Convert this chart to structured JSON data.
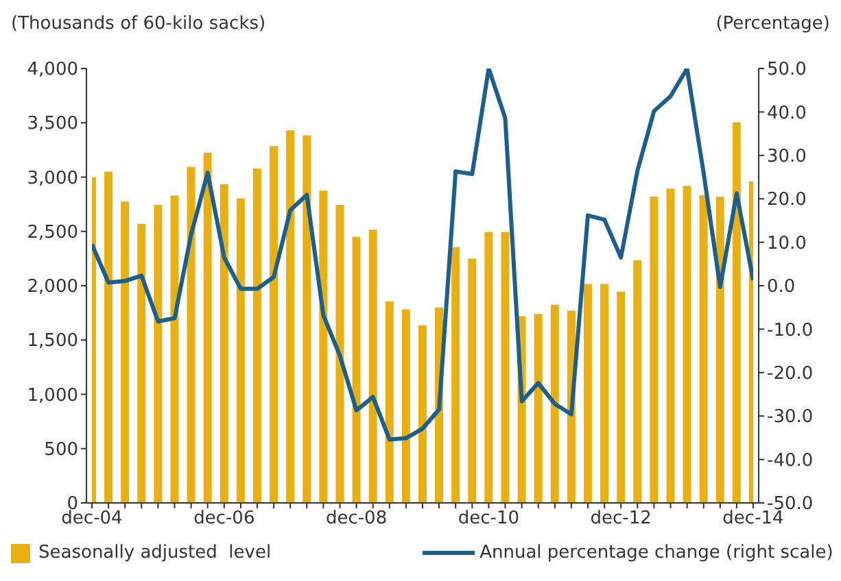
{
  "chart_data": {
    "type": "bar",
    "ylabel": "(Thousands of 60-kilo sacks)",
    "y2label": "(Percentage)",
    "categories": [
      "dec-04",
      null,
      null,
      null,
      null,
      null,
      null,
      null,
      "dec-06",
      null,
      null,
      null,
      null,
      null,
      null,
      null,
      "dec-08",
      null,
      null,
      null,
      null,
      null,
      null,
      null,
      "dec-10",
      null,
      null,
      null,
      null,
      null,
      null,
      null,
      "dec-12",
      null,
      null,
      null,
      null,
      null,
      null,
      null,
      "dec-14"
    ],
    "series": [
      {
        "name": "Seasonally adjusted  level",
        "color": "#e8b012",
        "values": [
          3000,
          3050,
          2775,
          2570,
          2745,
          2830,
          3095,
          3225,
          2935,
          2805,
          3080,
          3285,
          3430,
          3385,
          2875,
          2745,
          2450,
          2515,
          1855,
          1780,
          1635,
          1800,
          2355,
          2250,
          2495,
          2495,
          1720,
          1740,
          1825,
          1770,
          2015,
          2015,
          1945,
          2235,
          2820,
          2895,
          2920,
          2835,
          2820,
          3505,
          2960
        ]
      },
      {
        "name": "Annual percentage change (right scale)",
        "type": "line",
        "axis": "y2",
        "color": "#1c5e8c",
        "values": [
          9.5,
          0.7,
          1.1,
          2.3,
          -8.2,
          -7.5,
          11.8,
          26.0,
          6.5,
          -0.7,
          -0.7,
          2.0,
          17.4,
          20.9,
          -6.8,
          -16.1,
          -28.7,
          -25.6,
          -35.4,
          -35.1,
          -32.9,
          -28.5,
          26.3,
          25.7,
          50.0,
          38.6,
          -26.6,
          -22.4,
          -27.2,
          -29.6,
          16.2,
          15.2,
          6.5,
          26.5,
          40.2,
          43.6,
          50.0,
          26.0,
          -0.3,
          21.3,
          1.3
        ]
      }
    ],
    "ylim": [
      0,
      4000
    ],
    "yticks": [
      {
        "value": 0,
        "label": "0"
      },
      {
        "value": 500,
        "label": "500"
      },
      {
        "value": 1000,
        "label": "1,000"
      },
      {
        "value": 1500,
        "label": "1,500"
      },
      {
        "value": 2000,
        "label": "2,000"
      },
      {
        "value": 2500,
        "label": "2,500"
      },
      {
        "value": 3000,
        "label": "3,000"
      },
      {
        "value": 3500,
        "label": "3,500"
      },
      {
        "value": 4000,
        "label": "4,000"
      }
    ],
    "y2lim": [
      -50,
      50
    ],
    "y2ticks": [
      {
        "value": -50,
        "label": "-50.0"
      },
      {
        "value": -40,
        "label": "-40.0"
      },
      {
        "value": -30,
        "label": "-30.0"
      },
      {
        "value": -20,
        "label": "-20.0"
      },
      {
        "value": -10,
        "label": "-10.0"
      },
      {
        "value": 0,
        "label": "0.0"
      },
      {
        "value": 10,
        "label": "10.0"
      },
      {
        "value": 20,
        "label": "20.0"
      },
      {
        "value": 30,
        "label": "30.0"
      },
      {
        "value": 40,
        "label": "40.0"
      },
      {
        "value": 50,
        "label": "50.0"
      }
    ],
    "grid": false,
    "legend": "bottom",
    "marker": "none",
    "line_style": "solid"
  }
}
